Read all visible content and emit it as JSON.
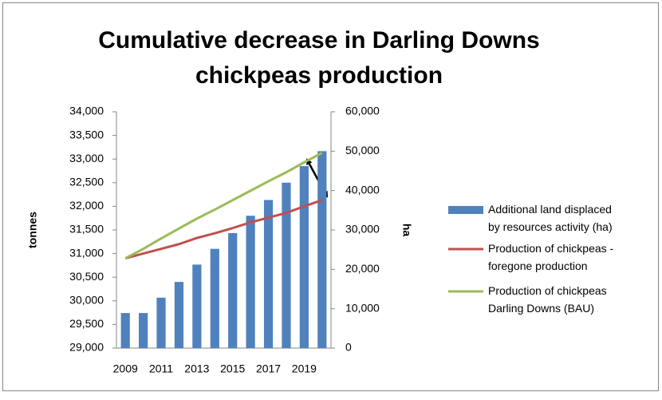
{
  "chart_data": {
    "type": "bar-line",
    "title": [
      "Cumulative decrease in Darling Downs",
      "chickpeas production"
    ],
    "ylabel": "tonnes",
    "y2label": "ha",
    "categories": [
      "2009",
      null,
      "2011",
      null,
      "2013",
      null,
      "2015",
      null,
      "2017",
      null,
      "2019",
      null
    ],
    "ylim": [
      29000,
      34000
    ],
    "yticks": [
      {
        "value": 29000,
        "label": "29,000"
      },
      {
        "value": 29500,
        "label": "29,500"
      },
      {
        "value": 30000,
        "label": "30,000"
      },
      {
        "value": 30500,
        "label": "30,500"
      },
      {
        "value": 31000,
        "label": "31,000"
      },
      {
        "value": 31500,
        "label": "31,500"
      },
      {
        "value": 32000,
        "label": "32,000"
      },
      {
        "value": 32500,
        "label": "32,500"
      },
      {
        "value": 33000,
        "label": "33,000"
      },
      {
        "value": 33500,
        "label": "33,500"
      },
      {
        "value": 34000,
        "label": "34,000"
      }
    ],
    "y2lim": [
      0,
      60000
    ],
    "y2ticks": [
      0,
      {
        "value": 10000,
        "label": "10,000"
      },
      {
        "value": 20000,
        "label": "20,000"
      },
      {
        "value": 30000,
        "label": "30,000"
      },
      {
        "value": 40000,
        "label": "40,000"
      },
      {
        "value": 50000,
        "label": "50,000"
      },
      {
        "value": 60000,
        "label": "60,000"
      }
    ],
    "series": [
      {
        "name": "Additional land displaced by resources activity (ha)",
        "type": "bar",
        "axis": "y2",
        "color": "#4f81bd",
        "values": [
          8900,
          8900,
          12800,
          16800,
          21200,
          25200,
          29200,
          33600,
          37600,
          42000,
          46200,
          50000
        ]
      },
      {
        "name": "Production of chickpeas - foregone production",
        "type": "line",
        "color": "#c0504d",
        "values": [
          30900,
          31000,
          31100,
          31200,
          31330,
          31430,
          31540,
          31660,
          31760,
          31860,
          32000,
          32130
        ]
      },
      {
        "name": "Production of chickpeas Darling Downs (BAU)",
        "type": "line",
        "color": "#9bbb59",
        "values": [
          30900,
          31100,
          31320,
          31530,
          31740,
          31930,
          32130,
          32330,
          32530,
          32720,
          32930,
          33130
        ]
      }
    ]
  }
}
